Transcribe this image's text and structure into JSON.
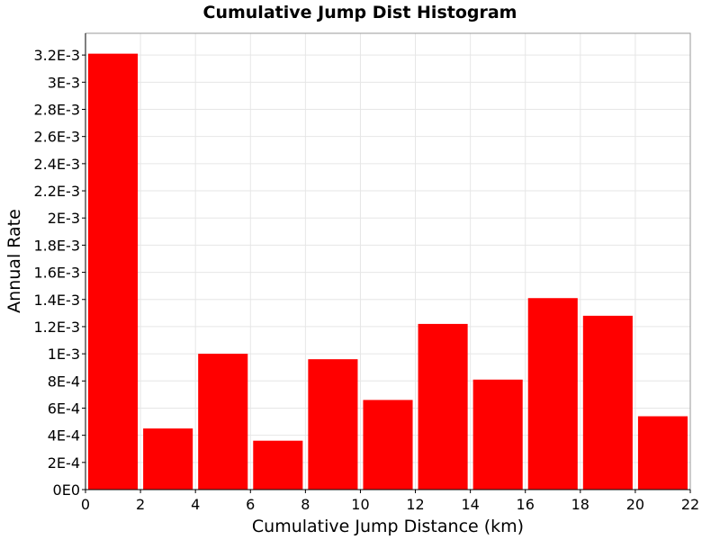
{
  "chart_data": {
    "type": "bar",
    "title": "Cumulative Jump Dist Histogram",
    "xlabel": "Cumulative Jump Distance (km)",
    "ylabel": "Annual Rate",
    "xlim": [
      0,
      22
    ],
    "ylim": [
      0,
      0.00336
    ],
    "x_ticks": [
      {
        "value": 0,
        "label": "0"
      },
      {
        "value": 2,
        "label": "2"
      },
      {
        "value": 4,
        "label": "4"
      },
      {
        "value": 6,
        "label": "6"
      },
      {
        "value": 8,
        "label": "8"
      },
      {
        "value": 10,
        "label": "10"
      },
      {
        "value": 12,
        "label": "12"
      },
      {
        "value": 14,
        "label": "14"
      },
      {
        "value": 16,
        "label": "16"
      },
      {
        "value": 18,
        "label": "18"
      },
      {
        "value": 20,
        "label": "20"
      },
      {
        "value": 22,
        "label": "22"
      }
    ],
    "y_ticks": [
      {
        "value": 0,
        "label": "0E0"
      },
      {
        "value": 0.0002,
        "label": "2E-4"
      },
      {
        "value": 0.0004,
        "label": "4E-4"
      },
      {
        "value": 0.0006,
        "label": "6E-4"
      },
      {
        "value": 0.0008,
        "label": "8E-4"
      },
      {
        "value": 0.001,
        "label": "1E-3"
      },
      {
        "value": 0.0012,
        "label": "1.2E-3"
      },
      {
        "value": 0.0014,
        "label": "1.4E-3"
      },
      {
        "value": 0.0016,
        "label": "1.6E-3"
      },
      {
        "value": 0.0018,
        "label": "1.8E-3"
      },
      {
        "value": 0.002,
        "label": "2E-3"
      },
      {
        "value": 0.0022,
        "label": "2.2E-3"
      },
      {
        "value": 0.0024,
        "label": "2.4E-3"
      },
      {
        "value": 0.0026,
        "label": "2.6E-3"
      },
      {
        "value": 0.0028,
        "label": "2.8E-3"
      },
      {
        "value": 0.003,
        "label": "3E-3"
      },
      {
        "value": 0.0032,
        "label": "3.2E-3"
      }
    ],
    "grid": true,
    "bar_color": "#ff0000",
    "bars": [
      {
        "x_start": 0,
        "x_end": 2,
        "value": 0.00321
      },
      {
        "x_start": 2,
        "x_end": 4,
        "value": 0.00045
      },
      {
        "x_start": 4,
        "x_end": 6,
        "value": 0.001
      },
      {
        "x_start": 6,
        "x_end": 8,
        "value": 0.00036
      },
      {
        "x_start": 8,
        "x_end": 10,
        "value": 0.00096
      },
      {
        "x_start": 10,
        "x_end": 12,
        "value": 0.00066
      },
      {
        "x_start": 12,
        "x_end": 14,
        "value": 0.00122
      },
      {
        "x_start": 14,
        "x_end": 16,
        "value": 0.00081
      },
      {
        "x_start": 16,
        "x_end": 18,
        "value": 0.00141
      },
      {
        "x_start": 18,
        "x_end": 20,
        "value": 0.00128
      },
      {
        "x_start": 20,
        "x_end": 22,
        "value": 0.00054
      }
    ]
  }
}
